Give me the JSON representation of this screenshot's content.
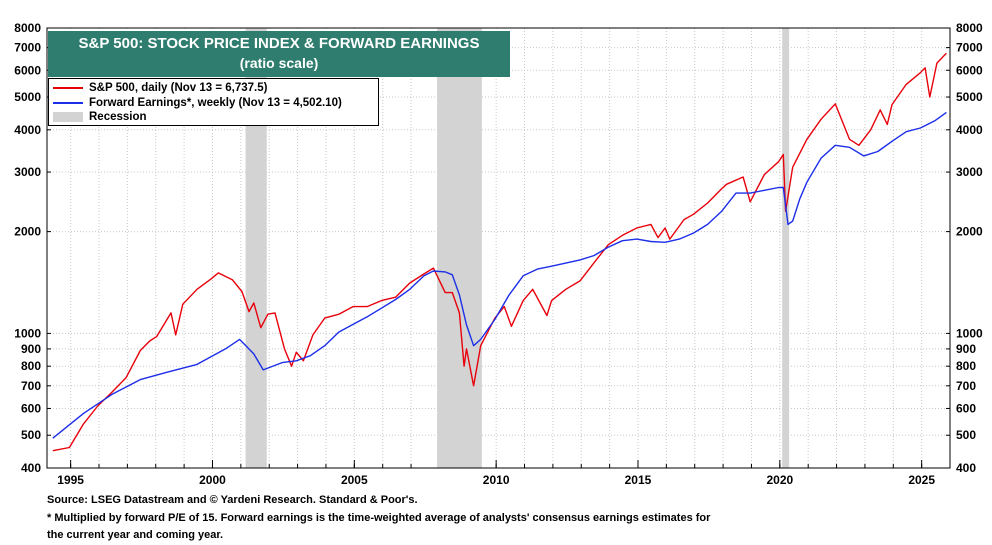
{
  "chart_data": {
    "type": "line",
    "title": "S&P 500: STOCK PRICE INDEX & FORWARD EARNINGS",
    "subtitle": "(ratio scale)",
    "y_scale": "log",
    "ylim": [
      400,
      8000
    ],
    "xlim": [
      "1994-03-01",
      "2025-12-31"
    ],
    "y_ticks": [
      400,
      500,
      600,
      700,
      800,
      900,
      1000,
      2000,
      3000,
      4000,
      5000,
      6000,
      7000,
      8000
    ],
    "x_ticks": [
      "1995",
      "2000",
      "2005",
      "2010",
      "2015",
      "2020",
      "2025"
    ],
    "grid": true,
    "legend_placement": "top-left",
    "recessions": [
      {
        "start": "2001-03-01",
        "end": "2001-11-30"
      },
      {
        "start": "2007-12-01",
        "end": "2009-06-30"
      },
      {
        "start": "2020-02-01",
        "end": "2020-04-30"
      }
    ],
    "series": [
      {
        "name": "S&P 500, daily (Nov 13 = 6,737.5)",
        "color": "#e8000b",
        "x": [
          "1994-05",
          "1994-12",
          "1995-06",
          "1995-12",
          "1996-06",
          "1996-12",
          "1997-06",
          "1997-10",
          "1998-01",
          "1998-07",
          "1998-09",
          "1998-12",
          "1999-06",
          "1999-12",
          "2000-03",
          "2000-09",
          "2001-01",
          "2001-04",
          "2001-06",
          "2001-09",
          "2001-12",
          "2002-03",
          "2002-07",
          "2002-10",
          "2002-12",
          "2003-03",
          "2003-07",
          "2003-12",
          "2004-06",
          "2004-12",
          "2005-06",
          "2005-12",
          "2006-06",
          "2006-12",
          "2007-06",
          "2007-10",
          "2008-03",
          "2008-06",
          "2008-09",
          "2008-11",
          "2008-12",
          "2009-03",
          "2009-06",
          "2009-12",
          "2010-04",
          "2010-07",
          "2010-12",
          "2011-04",
          "2011-10",
          "2011-12",
          "2012-06",
          "2012-12",
          "2013-06",
          "2013-12",
          "2014-06",
          "2014-12",
          "2015-06",
          "2015-09",
          "2015-12",
          "2016-02",
          "2016-08",
          "2016-12",
          "2017-06",
          "2017-12",
          "2018-02",
          "2018-09",
          "2018-12",
          "2019-06",
          "2019-12",
          "2020-02",
          "2020-03",
          "2020-06",
          "2020-12",
          "2021-06",
          "2021-12",
          "2022-06",
          "2022-10",
          "2023-03",
          "2023-07",
          "2023-10",
          "2023-12",
          "2024-06",
          "2024-12",
          "2025-02",
          "2025-04",
          "2025-07",
          "2025-11"
        ],
        "values": [
          450,
          460,
          540,
          610,
          670,
          740,
          890,
          950,
          980,
          1150,
          990,
          1220,
          1350,
          1450,
          1510,
          1440,
          1330,
          1160,
          1230,
          1040,
          1140,
          1150,
          900,
          800,
          880,
          830,
          990,
          1110,
          1140,
          1200,
          1200,
          1250,
          1280,
          1410,
          1500,
          1560,
          1320,
          1320,
          1150,
          800,
          900,
          700,
          920,
          1110,
          1200,
          1050,
          1250,
          1350,
          1130,
          1250,
          1350,
          1430,
          1620,
          1830,
          1950,
          2050,
          2100,
          1920,
          2050,
          1900,
          2170,
          2250,
          2430,
          2680,
          2760,
          2900,
          2450,
          2950,
          3220,
          3380,
          2300,
          3100,
          3750,
          4300,
          4770,
          3750,
          3600,
          4000,
          4580,
          4150,
          4750,
          5450,
          5900,
          6100,
          5000,
          6300,
          6737
        ]
      },
      {
        "name": "Forward Earnings*, weekly (Nov 13 = 4,502.10)",
        "color": "#1c2ee8",
        "x": [
          "1994-05",
          "1995-06",
          "1996-06",
          "1997-06",
          "1998-06",
          "1999-06",
          "2000-06",
          "2000-12",
          "2001-06",
          "2001-10",
          "2002-06",
          "2002-12",
          "2003-06",
          "2003-12",
          "2004-06",
          "2005-06",
          "2006-06",
          "2006-12",
          "2007-06",
          "2007-10",
          "2008-03",
          "2008-06",
          "2008-09",
          "2008-12",
          "2009-03",
          "2009-06",
          "2009-12",
          "2010-06",
          "2010-12",
          "2011-06",
          "2011-12",
          "2012-12",
          "2013-06",
          "2013-12",
          "2014-06",
          "2014-12",
          "2015-06",
          "2015-12",
          "2016-06",
          "2016-12",
          "2017-06",
          "2017-12",
          "2018-06",
          "2018-12",
          "2019-06",
          "2019-12",
          "2020-02",
          "2020-04",
          "2020-06",
          "2020-09",
          "2020-12",
          "2021-06",
          "2021-12",
          "2022-06",
          "2022-12",
          "2023-06",
          "2023-12",
          "2024-06",
          "2024-12",
          "2025-06",
          "2025-11"
        ],
        "values": [
          490,
          580,
          660,
          730,
          770,
          810,
          900,
          960,
          870,
          780,
          820,
          830,
          860,
          920,
          1010,
          1120,
          1260,
          1350,
          1480,
          1530,
          1520,
          1490,
          1300,
          1060,
          920,
          960,
          1100,
          1300,
          1480,
          1550,
          1580,
          1650,
          1700,
          1800,
          1880,
          1900,
          1870,
          1860,
          1900,
          1980,
          2100,
          2300,
          2600,
          2600,
          2650,
          2700,
          2700,
          2100,
          2150,
          2500,
          2800,
          3300,
          3600,
          3550,
          3350,
          3450,
          3700,
          3950,
          4050,
          4250,
          4502
        ]
      }
    ],
    "legend_recession_label": "Recession"
  },
  "footnotes": {
    "source": "Source: LSEG Datastream and © Yardeni Research. Standard & Poor's.",
    "note_line1": "* Multiplied by forward P/E of 15. Forward earnings is the time-weighted average of analysts' consensus earnings estimates for",
    "note_line2": "the current year and coming year."
  }
}
